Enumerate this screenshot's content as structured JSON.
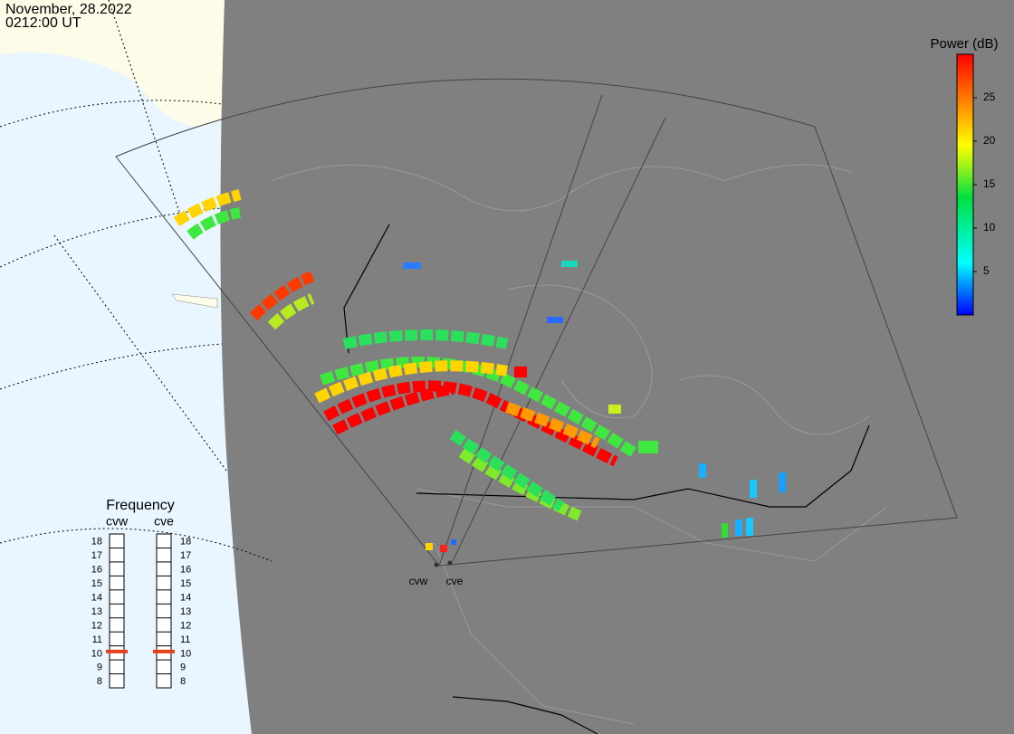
{
  "header": {
    "date": "November, 28.2022",
    "time": "0212:00 UT"
  },
  "colorbar": {
    "title": "Power (dB)",
    "lim": [
      0,
      30
    ],
    "ticks": [
      5,
      10,
      15,
      20,
      25
    ]
  },
  "frequency": {
    "title": "Frequency",
    "lim": [
      8,
      19
    ],
    "ticks": [
      8,
      9,
      10,
      11,
      12,
      13,
      14,
      15,
      16,
      17,
      18
    ],
    "radars": [
      {
        "name": "cvw",
        "value": 10.6
      },
      {
        "name": "cve",
        "value": 10.6
      }
    ]
  },
  "radar_sites": [
    "cvw",
    "cve"
  ]
}
